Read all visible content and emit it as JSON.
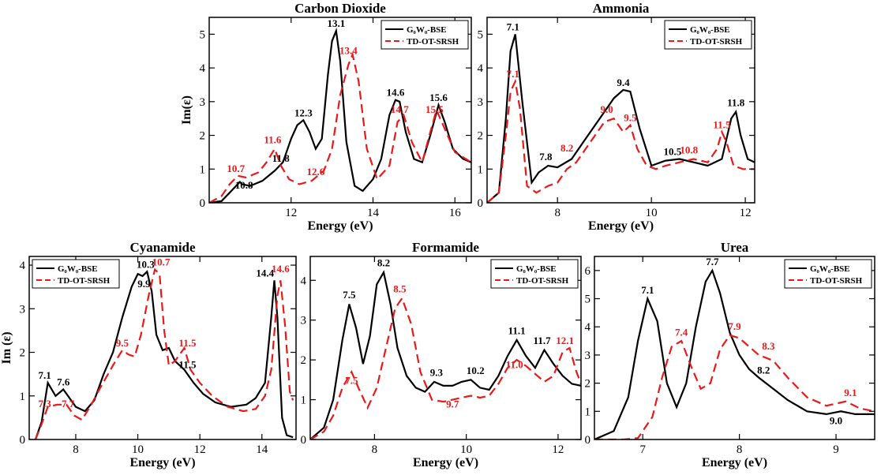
{
  "colors": {
    "s1": "#000000",
    "s2": "#e8191b"
  },
  "chart_data": [
    {
      "type": "line",
      "title": "Carbon Dioxide",
      "xlabel": "Energy (eV)",
      "ylabel": "Im(ε)",
      "xlim": [
        10,
        16.4
      ],
      "ylim": [
        0,
        5.5
      ],
      "xticks": [
        12,
        14,
        16
      ],
      "yticks": [
        0,
        1,
        2,
        3,
        4,
        5
      ],
      "legend": "top-right",
      "series_names": [
        "G₀W₀-BSE",
        "TD-OT-SRSH"
      ],
      "series": [
        {
          "x": [
            10,
            10.3,
            10.5,
            10.75,
            10.8,
            11.0,
            11.3,
            11.6,
            11.8,
            12.0,
            12.15,
            12.3,
            12.45,
            12.6,
            12.75,
            12.9,
            13.0,
            13.1,
            13.2,
            13.35,
            13.55,
            13.75,
            14.0,
            14.2,
            14.4,
            14.55,
            14.65,
            14.8,
            15.0,
            15.2,
            15.4,
            15.6,
            15.75,
            15.95,
            16.2,
            16.4
          ],
          "y": [
            0,
            0.05,
            0.3,
            0.62,
            0.55,
            0.5,
            0.65,
            0.95,
            1.2,
            1.9,
            2.3,
            2.45,
            2.1,
            1.6,
            1.9,
            3.8,
            4.8,
            5.1,
            4.2,
            1.8,
            0.5,
            0.35,
            0.7,
            1.3,
            2.6,
            3.05,
            3.0,
            2.1,
            1.3,
            1.2,
            2.0,
            2.9,
            2.4,
            1.6,
            1.3,
            1.2
          ]
        },
        {
          "x": [
            10,
            10.3,
            10.5,
            10.7,
            10.9,
            11.2,
            11.4,
            11.6,
            11.75,
            11.95,
            12.2,
            12.5,
            12.8,
            13.0,
            13.2,
            13.4,
            13.5,
            13.65,
            13.85,
            14.1,
            14.4,
            14.6,
            14.75,
            14.95,
            15.2,
            15.4,
            15.55,
            15.75,
            16.0,
            16.4
          ],
          "y": [
            0,
            0.2,
            0.55,
            0.8,
            0.75,
            0.9,
            1.2,
            1.6,
            1.1,
            0.7,
            0.55,
            0.65,
            0.95,
            1.6,
            3.2,
            4.1,
            4.4,
            3.6,
            1.6,
            0.7,
            1.1,
            2.4,
            2.6,
            1.8,
            1.2,
            2.1,
            2.75,
            2.2,
            1.5,
            1.2
          ]
        }
      ],
      "annotations": [
        {
          "text": "13.1",
          "x": 13.1,
          "y": 5.1,
          "s": 0
        },
        {
          "text": "12.3",
          "x": 12.3,
          "y": 2.45,
          "s": 0
        },
        {
          "text": "11.8",
          "x": 11.75,
          "y": 1.1,
          "s": 0
        },
        {
          "text": "10.8",
          "x": 10.85,
          "y": 0.3,
          "s": 0
        },
        {
          "text": "14.6",
          "x": 14.55,
          "y": 3.05,
          "s": 0
        },
        {
          "text": "15.6",
          "x": 15.6,
          "y": 2.9,
          "s": 0
        },
        {
          "text": "13.4",
          "x": 13.4,
          "y": 4.3,
          "s": 1
        },
        {
          "text": "11.6",
          "x": 11.55,
          "y": 1.65,
          "s": 1
        },
        {
          "text": "10.7",
          "x": 10.65,
          "y": 0.8,
          "s": 1
        },
        {
          "text": "12.6",
          "x": 12.6,
          "y": 0.7,
          "s": 1
        },
        {
          "text": "14.7",
          "x": 14.65,
          "y": 2.55,
          "s": 1
        },
        {
          "text": "15.5",
          "x": 15.5,
          "y": 2.55,
          "s": 1
        }
      ]
    },
    {
      "type": "line",
      "title": "Ammonia",
      "xlabel": "Energy (eV)",
      "ylabel": "",
      "xlim": [
        6.5,
        12.2
      ],
      "ylim": [
        0,
        5.5
      ],
      "xticks": [
        8,
        10,
        12
      ],
      "yticks": [
        0,
        1,
        2,
        3,
        4,
        5
      ],
      "legend": "top-right",
      "series_names": [
        "G₀W₀-BSE",
        "TD-OT-SRSH"
      ],
      "series": [
        {
          "x": [
            6.5,
            6.75,
            6.9,
            7.0,
            7.1,
            7.25,
            7.45,
            7.6,
            7.8,
            8.0,
            8.3,
            8.6,
            8.9,
            9.2,
            9.4,
            9.55,
            9.75,
            10.0,
            10.3,
            10.6,
            10.9,
            11.2,
            11.5,
            11.7,
            11.8,
            11.9,
            12.05,
            12.2
          ],
          "y": [
            0,
            0.3,
            2.5,
            4.5,
            5.0,
            3.0,
            0.6,
            0.9,
            1.1,
            1.05,
            1.3,
            1.9,
            2.5,
            3.1,
            3.35,
            3.3,
            2.2,
            1.1,
            1.25,
            1.3,
            1.2,
            1.1,
            1.3,
            2.5,
            2.7,
            2.0,
            1.3,
            1.2
          ]
        },
        {
          "x": [
            6.5,
            6.75,
            6.9,
            7.0,
            7.1,
            7.2,
            7.35,
            7.55,
            7.8,
            8.0,
            8.2,
            8.4,
            8.7,
            9.0,
            9.2,
            9.4,
            9.55,
            9.7,
            9.9,
            10.1,
            10.3,
            10.6,
            10.9,
            11.2,
            11.4,
            11.5,
            11.6,
            11.75,
            11.95,
            12.2
          ],
          "y": [
            0,
            0.3,
            2.0,
            3.3,
            3.6,
            2.8,
            0.5,
            0.3,
            0.5,
            0.6,
            1.0,
            1.2,
            1.8,
            2.4,
            2.5,
            2.1,
            2.3,
            1.6,
            1.1,
            1.0,
            1.1,
            1.2,
            1.3,
            1.2,
            1.6,
            2.1,
            1.8,
            1.1,
            1.0,
            1.0
          ]
        }
      ],
      "annotations": [
        {
          "text": "7.1",
          "x": 7.05,
          "y": 5.0,
          "s": 0
        },
        {
          "text": "7.8",
          "x": 7.75,
          "y": 1.15,
          "s": 0
        },
        {
          "text": "9.4",
          "x": 9.4,
          "y": 3.35,
          "s": 0
        },
        {
          "text": "10.5",
          "x": 10.45,
          "y": 1.3,
          "s": 0
        },
        {
          "text": "11.8",
          "x": 11.8,
          "y": 2.75,
          "s": 0
        },
        {
          "text": "7.1",
          "x": 7.05,
          "y": 3.6,
          "s": 1
        },
        {
          "text": "8.2",
          "x": 8.2,
          "y": 1.4,
          "s": 1
        },
        {
          "text": "9.0",
          "x": 9.05,
          "y": 2.55,
          "s": 1
        },
        {
          "text": "9.5",
          "x": 9.55,
          "y": 2.3,
          "s": 1
        },
        {
          "text": "10.8",
          "x": 10.8,
          "y": 1.35,
          "s": 1
        },
        {
          "text": "11.5",
          "x": 11.5,
          "y": 2.1,
          "s": 1
        }
      ]
    },
    {
      "type": "line",
      "title": "Cyanamide",
      "xlabel": "Energy (eV)",
      "ylabel": "Im (ε)",
      "xlim": [
        6.5,
        15.1
      ],
      "ylim": [
        0,
        4.2
      ],
      "xticks": [
        8,
        10,
        12,
        14
      ],
      "yticks": [
        0,
        1,
        2,
        3,
        4
      ],
      "legend": "top-left",
      "series_names": [
        "G₀W₀-BSE",
        "TD-OT-SRSH"
      ],
      "series": [
        {
          "x": [
            6.7,
            6.9,
            7.1,
            7.35,
            7.6,
            7.8,
            8.0,
            8.3,
            8.6,
            8.9,
            9.2,
            9.5,
            9.8,
            10.0,
            10.15,
            10.3,
            10.45,
            10.6,
            10.8,
            11.0,
            11.2,
            11.5,
            11.8,
            12.1,
            12.5,
            13.0,
            13.5,
            13.8,
            14.1,
            14.3,
            14.4,
            14.5,
            14.65,
            14.8,
            15.0
          ],
          "y": [
            0,
            0.4,
            1.3,
            1.0,
            1.15,
            0.95,
            0.75,
            0.65,
            0.9,
            1.5,
            2.0,
            2.8,
            3.5,
            3.8,
            3.75,
            3.85,
            3.4,
            2.4,
            2.05,
            2.1,
            1.8,
            1.6,
            1.3,
            1.05,
            0.85,
            0.75,
            0.8,
            0.95,
            1.3,
            2.8,
            3.65,
            2.8,
            0.5,
            0.1,
            0.05
          ]
        },
        {
          "x": [
            6.7,
            6.9,
            7.1,
            7.4,
            7.7,
            7.95,
            8.2,
            8.5,
            8.8,
            9.2,
            9.5,
            9.7,
            9.9,
            10.1,
            10.35,
            10.55,
            10.7,
            10.85,
            11.0,
            11.2,
            11.5,
            11.7,
            12.0,
            12.4,
            12.9,
            13.4,
            13.8,
            14.1,
            14.3,
            14.5,
            14.6,
            14.75,
            14.9,
            15.0
          ],
          "y": [
            0,
            0.35,
            0.75,
            0.8,
            0.8,
            0.55,
            0.45,
            0.8,
            1.2,
            1.7,
            2.05,
            1.95,
            1.9,
            2.4,
            3.3,
            3.9,
            3.8,
            2.5,
            1.7,
            1.8,
            2.1,
            1.6,
            1.3,
            1.0,
            0.75,
            0.65,
            0.7,
            1.0,
            1.6,
            3.3,
            3.65,
            2.6,
            1.1,
            0.9
          ]
        }
      ],
      "annotations": [
        {
          "text": "7.1",
          "x": 7.0,
          "y": 1.3,
          "s": 0
        },
        {
          "text": "7.6",
          "x": 7.6,
          "y": 1.15,
          "s": 0
        },
        {
          "text": "10.3",
          "x": 10.25,
          "y": 3.85,
          "s": 0
        },
        {
          "text": "9.9",
          "x": 10.2,
          "y": 3.4,
          "s": 0
        },
        {
          "text": "11.5",
          "x": 11.6,
          "y": 1.55,
          "s": 0
        },
        {
          "text": "14.4",
          "x": 14.1,
          "y": 3.65,
          "s": 0
        },
        {
          "text": "7.3",
          "x": 7.0,
          "y": 0.65,
          "s": 1
        },
        {
          "text": "7.7",
          "x": 7.75,
          "y": 0.65,
          "s": 1
        },
        {
          "text": "9.5",
          "x": 9.5,
          "y": 2.05,
          "s": 1
        },
        {
          "text": "10.7",
          "x": 10.75,
          "y": 3.9,
          "s": 1
        },
        {
          "text": "11.5",
          "x": 11.6,
          "y": 2.05,
          "s": 1
        },
        {
          "text": "14.6",
          "x": 14.6,
          "y": 3.75,
          "s": 1
        }
      ]
    },
    {
      "type": "line",
      "title": "Formamide",
      "xlabel": "Energy (eV)",
      "ylabel": "",
      "xlim": [
        6.6,
        12.5
      ],
      "ylim": [
        0,
        4.6
      ],
      "xticks": [
        8,
        10,
        12
      ],
      "yticks": [
        0,
        1,
        2,
        3,
        4
      ],
      "legend": "top-right",
      "series_names": [
        "G₀W₀-BSE",
        "TD-OT-SRSH"
      ],
      "series": [
        {
          "x": [
            6.6,
            6.9,
            7.1,
            7.3,
            7.45,
            7.6,
            7.75,
            7.9,
            8.05,
            8.2,
            8.35,
            8.5,
            8.7,
            8.9,
            9.1,
            9.3,
            9.5,
            9.7,
            9.9,
            10.1,
            10.3,
            10.5,
            10.7,
            10.9,
            11.1,
            11.3,
            11.5,
            11.7,
            11.9,
            12.1,
            12.3,
            12.5
          ],
          "y": [
            0,
            0.3,
            1.0,
            2.5,
            3.4,
            2.8,
            1.9,
            2.6,
            3.9,
            4.2,
            3.4,
            2.3,
            1.6,
            1.3,
            1.2,
            1.45,
            1.35,
            1.35,
            1.45,
            1.5,
            1.3,
            1.25,
            1.6,
            2.1,
            2.5,
            2.1,
            1.8,
            2.25,
            1.9,
            1.6,
            1.4,
            1.35
          ]
        },
        {
          "x": [
            6.6,
            6.9,
            7.1,
            7.3,
            7.5,
            7.65,
            7.85,
            8.05,
            8.25,
            8.45,
            8.6,
            8.8,
            9.0,
            9.25,
            9.5,
            9.7,
            9.9,
            10.1,
            10.3,
            10.5,
            10.7,
            10.9,
            11.1,
            11.3,
            11.5,
            11.7,
            11.9,
            12.1,
            12.25,
            12.4,
            12.5
          ],
          "y": [
            0,
            0.2,
            0.6,
            1.3,
            1.7,
            1.3,
            0.8,
            1.3,
            2.3,
            3.3,
            3.55,
            2.9,
            1.7,
            1.0,
            0.95,
            1.0,
            1.05,
            1.1,
            1.05,
            1.1,
            1.4,
            1.8,
            2.0,
            1.85,
            1.65,
            1.45,
            1.6,
            2.2,
            2.3,
            1.7,
            1.4
          ]
        }
      ],
      "annotations": [
        {
          "text": "7.5",
          "x": 7.45,
          "y": 3.45,
          "s": 0
        },
        {
          "text": "8.2",
          "x": 8.2,
          "y": 4.25,
          "s": 0
        },
        {
          "text": "9.3",
          "x": 9.35,
          "y": 1.5,
          "s": 0
        },
        {
          "text": "10.2",
          "x": 10.2,
          "y": 1.55,
          "s": 0
        },
        {
          "text": "11.1",
          "x": 11.1,
          "y": 2.55,
          "s": 0
        },
        {
          "text": "11.7",
          "x": 11.65,
          "y": 2.3,
          "s": 0
        },
        {
          "text": "7.5",
          "x": 7.5,
          "y": 1.3,
          "s": 1
        },
        {
          "text": "8.5",
          "x": 8.55,
          "y": 3.6,
          "s": 1
        },
        {
          "text": "9.7",
          "x": 9.7,
          "y": 0.7,
          "s": 1
        },
        {
          "text": "11.0",
          "x": 11.05,
          "y": 1.7,
          "s": 1
        },
        {
          "text": "12.1",
          "x": 12.15,
          "y": 2.3,
          "s": 1
        }
      ]
    },
    {
      "type": "line",
      "title": "Urea",
      "xlabel": "Energy (eV)",
      "ylabel": "",
      "xlim": [
        6.5,
        9.4
      ],
      "ylim": [
        0,
        6.5
      ],
      "xticks": [
        7,
        8,
        9
      ],
      "yticks": [
        0,
        1,
        2,
        3,
        4,
        5,
        6
      ],
      "legend": "top-right",
      "series_names": [
        "G₀W₀-BSE",
        "TD-OT-SRSH"
      ],
      "series": [
        {
          "x": [
            6.5,
            6.7,
            6.85,
            6.95,
            7.05,
            7.15,
            7.25,
            7.35,
            7.45,
            7.55,
            7.65,
            7.72,
            7.8,
            7.9,
            8.0,
            8.1,
            8.2,
            8.35,
            8.5,
            8.7,
            8.9,
            9.05,
            9.2,
            9.4
          ],
          "y": [
            0,
            0.3,
            1.5,
            3.5,
            5.0,
            4.2,
            2.0,
            1.15,
            2.0,
            4.0,
            5.6,
            6.0,
            5.2,
            3.8,
            3.0,
            2.5,
            2.2,
            1.8,
            1.4,
            1.0,
            0.9,
            1.0,
            0.9,
            0.9
          ]
        },
        {
          "x": [
            6.5,
            6.8,
            6.95,
            7.1,
            7.2,
            7.3,
            7.4,
            7.5,
            7.6,
            7.7,
            7.8,
            7.9,
            8.0,
            8.1,
            8.2,
            8.35,
            8.5,
            8.7,
            8.9,
            9.1,
            9.25,
            9.4
          ],
          "y": [
            0,
            0.0,
            0.05,
            0.8,
            2.2,
            3.3,
            3.5,
            2.6,
            1.8,
            2.0,
            3.2,
            3.7,
            3.6,
            3.3,
            3.0,
            2.8,
            2.2,
            1.5,
            1.2,
            1.35,
            1.1,
            1.0
          ]
        }
      ],
      "annotations": [
        {
          "text": "7.1",
          "x": 7.05,
          "y": 5.05,
          "s": 0
        },
        {
          "text": "7.7",
          "x": 7.72,
          "y": 6.05,
          "s": 0
        },
        {
          "text": "8.2",
          "x": 8.25,
          "y": 2.2,
          "s": 0
        },
        {
          "text": "9.0",
          "x": 9.0,
          "y": 0.4,
          "s": 0
        },
        {
          "text": "7.4",
          "x": 7.4,
          "y": 3.55,
          "s": 1
        },
        {
          "text": "7.9",
          "x": 7.95,
          "y": 3.75,
          "s": 1
        },
        {
          "text": "8.3",
          "x": 8.3,
          "y": 3.05,
          "s": 1
        },
        {
          "text": "9.1",
          "x": 9.15,
          "y": 1.4,
          "s": 1
        }
      ]
    }
  ]
}
